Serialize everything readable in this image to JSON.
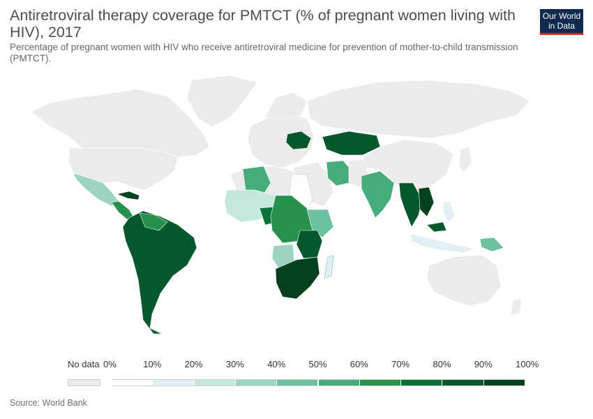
{
  "header": {
    "title": "Antiretroviral therapy coverage for PMTCT (% of pregnant women living with HIV), 2017",
    "subtitle": "Percentage of pregnant women with HIV who receive antiretroviral medicine for prevention of mother-to-child transmission (PMTCT).",
    "logo_line1": "Our World",
    "logo_line2": "in Data"
  },
  "legend": {
    "no_data_label": "No data",
    "ticks": [
      "0%",
      "10%",
      "20%",
      "30%",
      "40%",
      "50%",
      "60%",
      "70%",
      "80%",
      "90%",
      "100%"
    ],
    "colors": [
      "#fbfdfe",
      "#e2f0f5",
      "#c6e8dc",
      "#9dd3c2",
      "#6cc1a1",
      "#45ad79",
      "#26904d",
      "#0a733a",
      "#05582b",
      "#02401e"
    ],
    "no_data_color": "#ebebeb"
  },
  "source": "Source: World Bank",
  "map_colors": {
    "land_no_data": "#ebebeb",
    "border": "#ffffff"
  }
}
